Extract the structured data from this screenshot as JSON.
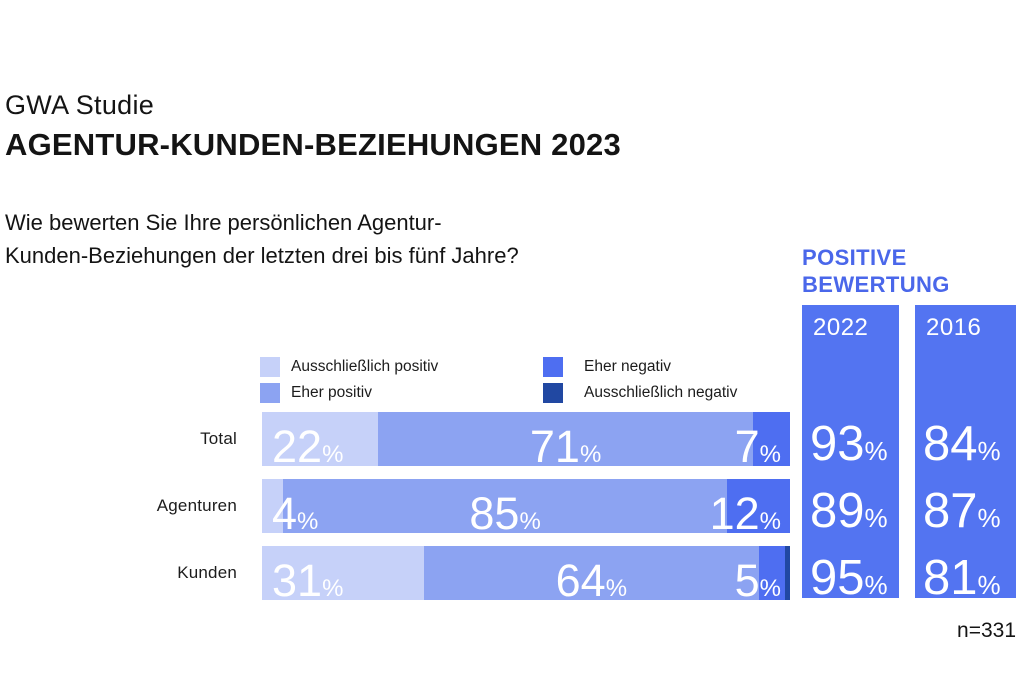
{
  "header": {
    "eyebrow": "GWA Studie",
    "title": "AGENTUR-KUNDEN-BEZIEHUNGEN 2023",
    "question_line1": "Wie bewerten Sie Ihre persönlichen Agentur-",
    "question_line2": "Kunden-Beziehungen der letzten drei bis fünf Jahre?"
  },
  "legend": {
    "items": [
      {
        "label": "Ausschließlich positiv",
        "color": "#c6d1f9"
      },
      {
        "label": "Eher positiv",
        "color": "#8ca3f2"
      },
      {
        "label": "Eher negativ",
        "color": "#4e6ef1"
      },
      {
        "label": "Ausschließlich negativ",
        "color": "#2148a2"
      }
    ]
  },
  "positive_panel": {
    "heading_line1": "POSITIVE",
    "heading_line2": "BEWERTUNG",
    "heading_color": "#4a67ea",
    "column_color": "#5374f1",
    "unit": "%",
    "columns": [
      {
        "year": "2022",
        "values": [
          "93",
          "89",
          "95"
        ]
      },
      {
        "year": "2016",
        "values": [
          "84",
          "87",
          "81"
        ]
      }
    ]
  },
  "footer": {
    "sample_note": "n=331"
  },
  "chart_data": {
    "type": "bar",
    "stacked": true,
    "orientation": "horizontal",
    "unit": "%",
    "categories": [
      "Total",
      "Agenturen",
      "Kunden"
    ],
    "series": [
      {
        "name": "Ausschließlich positiv",
        "color": "#c6d1f9",
        "values": [
          22,
          4,
          31
        ]
      },
      {
        "name": "Eher positiv",
        "color": "#8ca3f2",
        "values": [
          71,
          85,
          64
        ]
      },
      {
        "name": "Eher negativ",
        "color": "#4e6ef1",
        "values": [
          7,
          12,
          5
        ]
      },
      {
        "name": "Ausschließlich negativ",
        "color": "#2148a2",
        "values": [
          0,
          0,
          1
        ],
        "labels_shown": false
      }
    ],
    "value_labels": [
      [
        "22",
        "71",
        "7"
      ],
      [
        "4",
        "85",
        "12"
      ],
      [
        "31",
        "64",
        "5"
      ]
    ],
    "positive_rating": {
      "2022": [
        93,
        89,
        95
      ],
      "2016": [
        84,
        87,
        81
      ]
    },
    "legend_position": "top",
    "grid": false
  }
}
